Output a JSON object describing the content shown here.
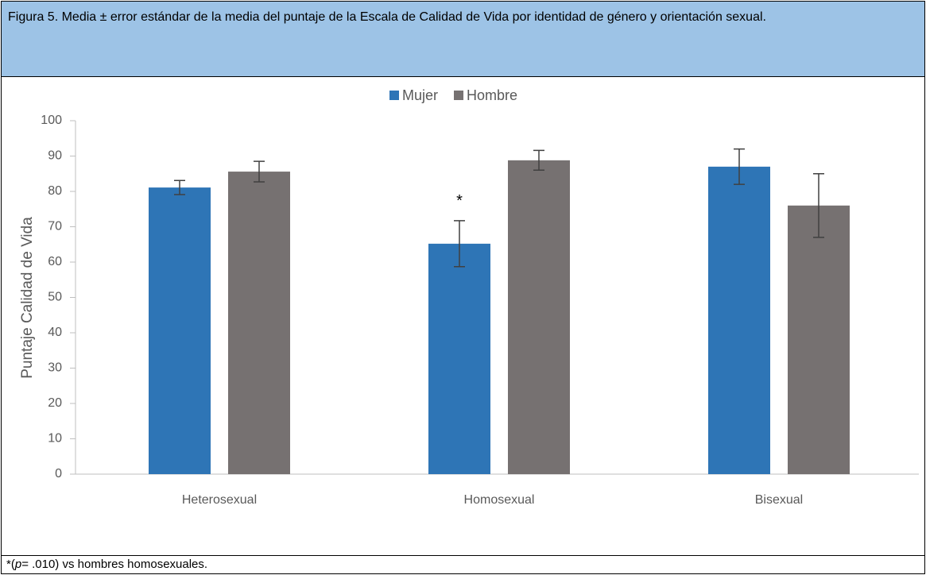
{
  "header": {
    "title": "Figura 5. Media ± error estándar de la media del puntaje de la Escala de Calidad de Vida por identidad de género y orientación sexual."
  },
  "chart_data": {
    "type": "bar",
    "ylabel": "Puntaje Calidad de Vida",
    "categories": [
      "Heterosexual",
      "Homosexual",
      "Bisexual"
    ],
    "series": [
      {
        "name": "Mujer",
        "color": "#2e75b6",
        "values": [
          81.1,
          65.2,
          87
        ],
        "errors": [
          2,
          6.5,
          5
        ]
      },
      {
        "name": "Hombre",
        "color": "#767171",
        "values": [
          85.6,
          88.8,
          76
        ],
        "errors": [
          2.9,
          2.8,
          9
        ]
      }
    ],
    "ylim": [
      0,
      100
    ],
    "yticks": [
      0,
      10,
      20,
      30,
      40,
      50,
      60,
      70,
      80,
      90,
      100
    ],
    "annotations": [
      {
        "text": "*"
      }
    ]
  },
  "footnote": {
    "prefix": "*(",
    "italic": "p",
    "suffix": "= .010) vs hombres homosexuales."
  }
}
